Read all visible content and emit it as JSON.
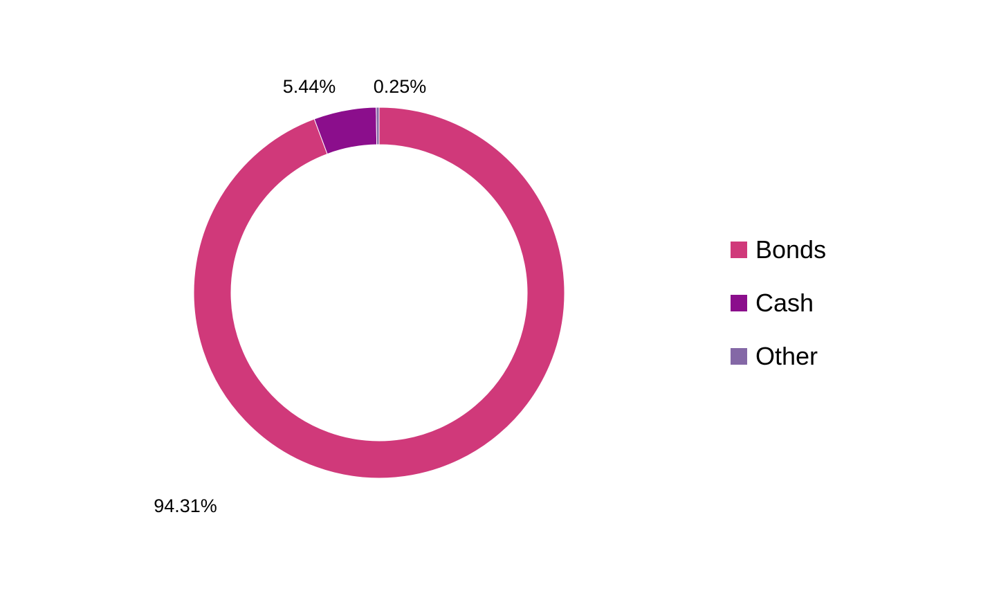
{
  "chart_data": {
    "type": "pie",
    "style": "donut",
    "title": "",
    "categories": [
      "Bonds",
      "Cash",
      "Other"
    ],
    "values": [
      94.31,
      5.44,
      0.25
    ],
    "data_labels": [
      "94.31%",
      "5.44%",
      "0.25%"
    ],
    "colors": [
      "#D0397A",
      "#8B0E8C",
      "#8468A6"
    ],
    "start_angle_deg": 0,
    "direction": "clockwise",
    "legend_position": "right",
    "legend": [
      {
        "label": "Bonds",
        "color": "#D0397A"
      },
      {
        "label": "Cash",
        "color": "#8B0E8C"
      },
      {
        "label": "Other",
        "color": "#8468A6"
      }
    ]
  }
}
